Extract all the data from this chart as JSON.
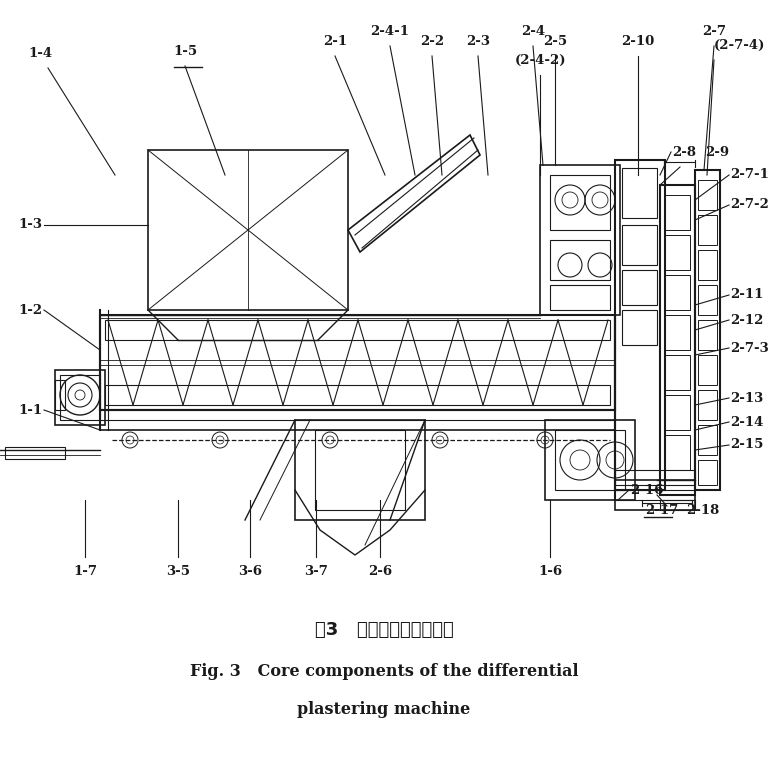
{
  "title_chinese": "图3   差动抹灰机核心部件",
  "title_english_line1": "Fig. 3   Core components of the differential",
  "title_english_line2": "plastering machine",
  "background_color": "#ffffff",
  "line_color": "#1a1a1a",
  "figsize": [
    7.68,
    7.7
  ],
  "dpi": 100
}
